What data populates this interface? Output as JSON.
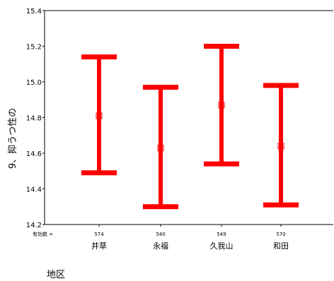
{
  "chart_data": {
    "type": "errorbar",
    "title": "",
    "xlabel": "地区",
    "ylabel": "9、抑うつ性の",
    "ylim": [
      14.2,
      15.4
    ],
    "yticks": [
      14.2,
      14.4,
      14.6,
      14.8,
      15.0,
      15.2,
      15.4
    ],
    "ytick_labels": [
      "14.2",
      "14.4",
      "14.6",
      "14.8",
      "15.0",
      "15.2",
      "15.4"
    ],
    "n_prefix": "有効数 =",
    "categories": [
      "井草",
      "永福",
      "久我山",
      "和田"
    ],
    "n": [
      "574",
      "540",
      "549",
      "570"
    ],
    "mean": [
      14.81,
      14.63,
      14.87,
      14.64
    ],
    "lower": [
      14.49,
      14.3,
      14.54,
      14.31
    ],
    "upper": [
      15.14,
      14.97,
      15.2,
      14.98
    ],
    "color": "#ff0000"
  }
}
